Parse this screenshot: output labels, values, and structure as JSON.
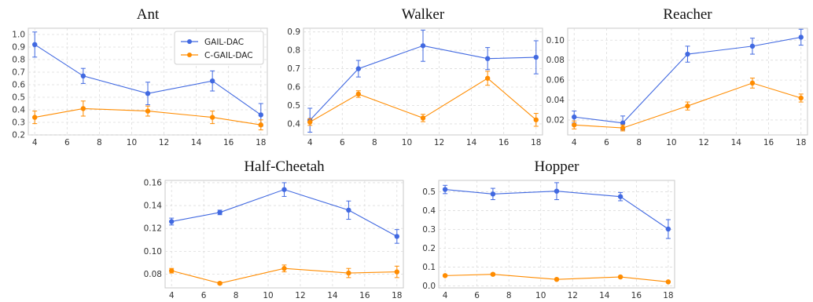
{
  "colors": {
    "gail": "#4169E1",
    "cgail": "#FF8C00",
    "grid": "#dcdcdc",
    "frame": "#c8c8c8"
  },
  "legend": {
    "placement": "top-right",
    "subplot": 0,
    "entries": [
      "GAIL-DAC",
      "C-GAIL-DAC"
    ]
  },
  "chart_data": [
    {
      "type": "line",
      "title": "Ant",
      "x": [
        4,
        7,
        11,
        15,
        18
      ],
      "xticks": [
        4,
        6,
        8,
        10,
        12,
        14,
        16,
        18
      ],
      "ylim": [
        0.2,
        1.05
      ],
      "yticks": [
        0.2,
        0.3,
        0.4,
        0.5,
        0.6,
        0.7,
        0.8,
        0.9,
        1.0
      ],
      "ytick_labels": [
        "0.2",
        "0.3",
        "0.4",
        "0.5",
        "0.6",
        "0.7",
        "0.8",
        "0.9",
        "1.0"
      ],
      "grid": true,
      "series": [
        {
          "name": "GAIL-DAC",
          "values": [
            0.92,
            0.67,
            0.53,
            0.63,
            0.36
          ],
          "errors": [
            0.1,
            0.06,
            0.09,
            0.08,
            0.09
          ]
        },
        {
          "name": "C-GAIL-DAC",
          "values": [
            0.34,
            0.41,
            0.39,
            0.34,
            0.28
          ],
          "errors": [
            0.05,
            0.06,
            0.04,
            0.05,
            0.04
          ]
        }
      ]
    },
    {
      "type": "line",
      "title": "Walker",
      "x": [
        4,
        7,
        11,
        15,
        18
      ],
      "xticks": [
        4,
        6,
        8,
        10,
        12,
        14,
        16,
        18
      ],
      "ylim": [
        0.34,
        0.92
      ],
      "yticks": [
        0.4,
        0.5,
        0.6,
        0.7,
        0.8,
        0.9
      ],
      "ytick_labels": [
        "0.4",
        "0.5",
        "0.6",
        "0.7",
        "0.8",
        "0.9"
      ],
      "grid": true,
      "series": [
        {
          "name": "GAIL-DAC",
          "values": [
            0.42,
            0.7,
            0.825,
            0.755,
            0.762
          ],
          "errors": [
            0.065,
            0.045,
            0.085,
            0.06,
            0.09
          ]
        },
        {
          "name": "C-GAIL-DAC",
          "values": [
            0.41,
            0.562,
            0.432,
            0.648,
            0.422
          ],
          "errors": [
            0.018,
            0.018,
            0.02,
            0.038,
            0.035
          ]
        }
      ]
    },
    {
      "type": "line",
      "title": "Reacher",
      "x": [
        4,
        7,
        11,
        15,
        18
      ],
      "xticks": [
        4,
        6,
        8,
        10,
        12,
        14,
        16,
        18
      ],
      "ylim": [
        0.005,
        0.112
      ],
      "yticks": [
        0.02,
        0.04,
        0.06,
        0.08,
        0.1
      ],
      "ytick_labels": [
        "0.02",
        "0.04",
        "0.06",
        "0.08",
        "0.10"
      ],
      "grid": true,
      "series": [
        {
          "name": "GAIL-DAC",
          "values": [
            0.023,
            0.017,
            0.086,
            0.094,
            0.103
          ],
          "errors": [
            0.006,
            0.007,
            0.008,
            0.008,
            0.008
          ]
        },
        {
          "name": "C-GAIL-DAC",
          "values": [
            0.015,
            0.012,
            0.034,
            0.057,
            0.042
          ],
          "errors": [
            0.004,
            0.003,
            0.004,
            0.005,
            0.004
          ]
        }
      ]
    },
    {
      "type": "line",
      "title": "Half-Cheetah",
      "x": [
        4,
        7,
        11,
        15,
        18
      ],
      "xticks": [
        4,
        6,
        8,
        10,
        12,
        14,
        16,
        18
      ],
      "ylim": [
        0.068,
        0.162
      ],
      "yticks": [
        0.08,
        0.1,
        0.12,
        0.14,
        0.16
      ],
      "ytick_labels": [
        "0.08",
        "0.10",
        "0.12",
        "0.14",
        "0.16"
      ],
      "grid": true,
      "series": [
        {
          "name": "GAIL-DAC",
          "values": [
            0.126,
            0.134,
            0.154,
            0.136,
            0.113
          ],
          "errors": [
            0.003,
            0.002,
            0.006,
            0.008,
            0.006
          ]
        },
        {
          "name": "C-GAIL-DAC",
          "values": [
            0.083,
            0.072,
            0.085,
            0.081,
            0.082
          ],
          "errors": [
            0.002,
            0.001,
            0.003,
            0.004,
            0.005
          ]
        }
      ]
    },
    {
      "type": "line",
      "title": "Hopper",
      "x": [
        4,
        7,
        11,
        15,
        18
      ],
      "xticks": [
        4,
        6,
        8,
        10,
        12,
        14,
        16,
        18
      ],
      "ylim": [
        -0.01,
        0.56
      ],
      "yticks": [
        0.0,
        0.1,
        0.2,
        0.3,
        0.4,
        0.5
      ],
      "ytick_labels": [
        "0.0",
        "0.1",
        "0.2",
        "0.3",
        "0.4",
        "0.5"
      ],
      "grid": true,
      "series": [
        {
          "name": "GAIL-DAC",
          "values": [
            0.512,
            0.488,
            0.503,
            0.474,
            0.302
          ],
          "errors": [
            0.022,
            0.03,
            0.045,
            0.022,
            0.05
          ]
        },
        {
          "name": "C-GAIL-DAC",
          "values": [
            0.055,
            0.062,
            0.035,
            0.048,
            0.022
          ],
          "errors": [
            0.004,
            0.005,
            0.003,
            0.004,
            0.003
          ]
        }
      ]
    }
  ]
}
